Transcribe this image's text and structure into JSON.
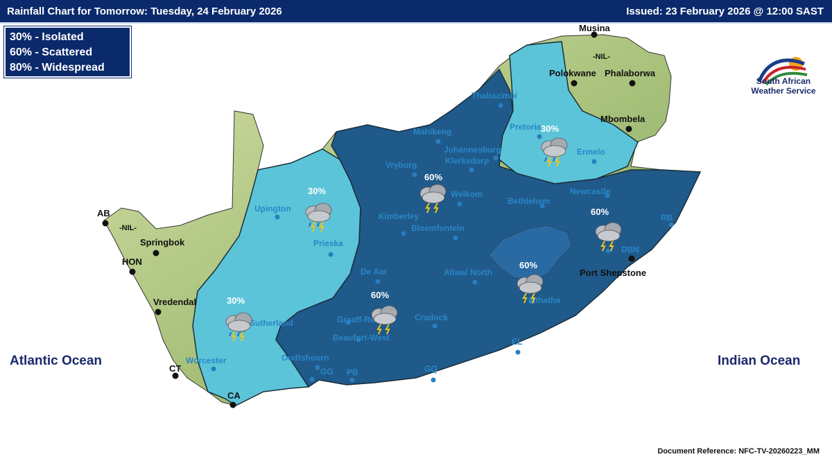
{
  "header": {
    "title": "Rainfall Chart for Tomorrow: Tuesday, 24 February 2026",
    "issued": "Issued: 23 February 2026 @ 12:00 SAST"
  },
  "legend": {
    "items": [
      "30% - Isolated",
      "60% - Scattered",
      "80% - Widespread"
    ]
  },
  "oceans": {
    "atlantic": "Atlantic Ocean",
    "indian": "Indian Ocean"
  },
  "logo": {
    "line1": "South African",
    "line2": "Weather Service"
  },
  "document_reference": "Document Reference:  NFC-TV-20260223_MM",
  "nil_labels": [
    "-NIL-",
    "-NIL-"
  ],
  "zones": [
    {
      "probability": "30%",
      "category": "Isolated",
      "color": "#5cc4d8"
    },
    {
      "probability": "60%",
      "category": "Scattered",
      "color": "#1f5a8a"
    },
    {
      "probability": "60%",
      "category": "Scattered",
      "color": "#2a6aa3"
    }
  ],
  "probability_labels": [
    "30%",
    "30%",
    "30%",
    "60%",
    "60%",
    "60%",
    "60%"
  ],
  "cities_black": [
    "Musina",
    "Polokwane",
    "Phalaborwa",
    "Mbombela",
    "AB",
    "Springbok",
    "HON",
    "Vredendal",
    "CT",
    "CA",
    "Port Shepstone"
  ],
  "cities_blue": [
    "Thabazimbi",
    "Mahikeng",
    "Pretoria",
    "Ermelo",
    "Johannesburg",
    "Klerksdorp",
    "Vryburg",
    "Welkom",
    "Bethlehem",
    "Newcastle",
    "RB",
    "Upington",
    "Kimberley",
    "Bloemfontein",
    "Prieska",
    "DBN",
    "De Aar",
    "Aliwal North",
    "Mthatha",
    "Graaff-Reinet",
    "Cradock",
    "Sutherland",
    "Beaufort-West",
    "Worcester",
    "Oudtshoorn",
    "GG",
    "PB",
    "GQ",
    "EL"
  ],
  "colors": {
    "header_bg": "#0b2a6b",
    "zone_30": "#5cc4d8",
    "zone_60": "#1f5a8a",
    "lesotho": "#2a6aa3",
    "land": "#c9d69a"
  }
}
